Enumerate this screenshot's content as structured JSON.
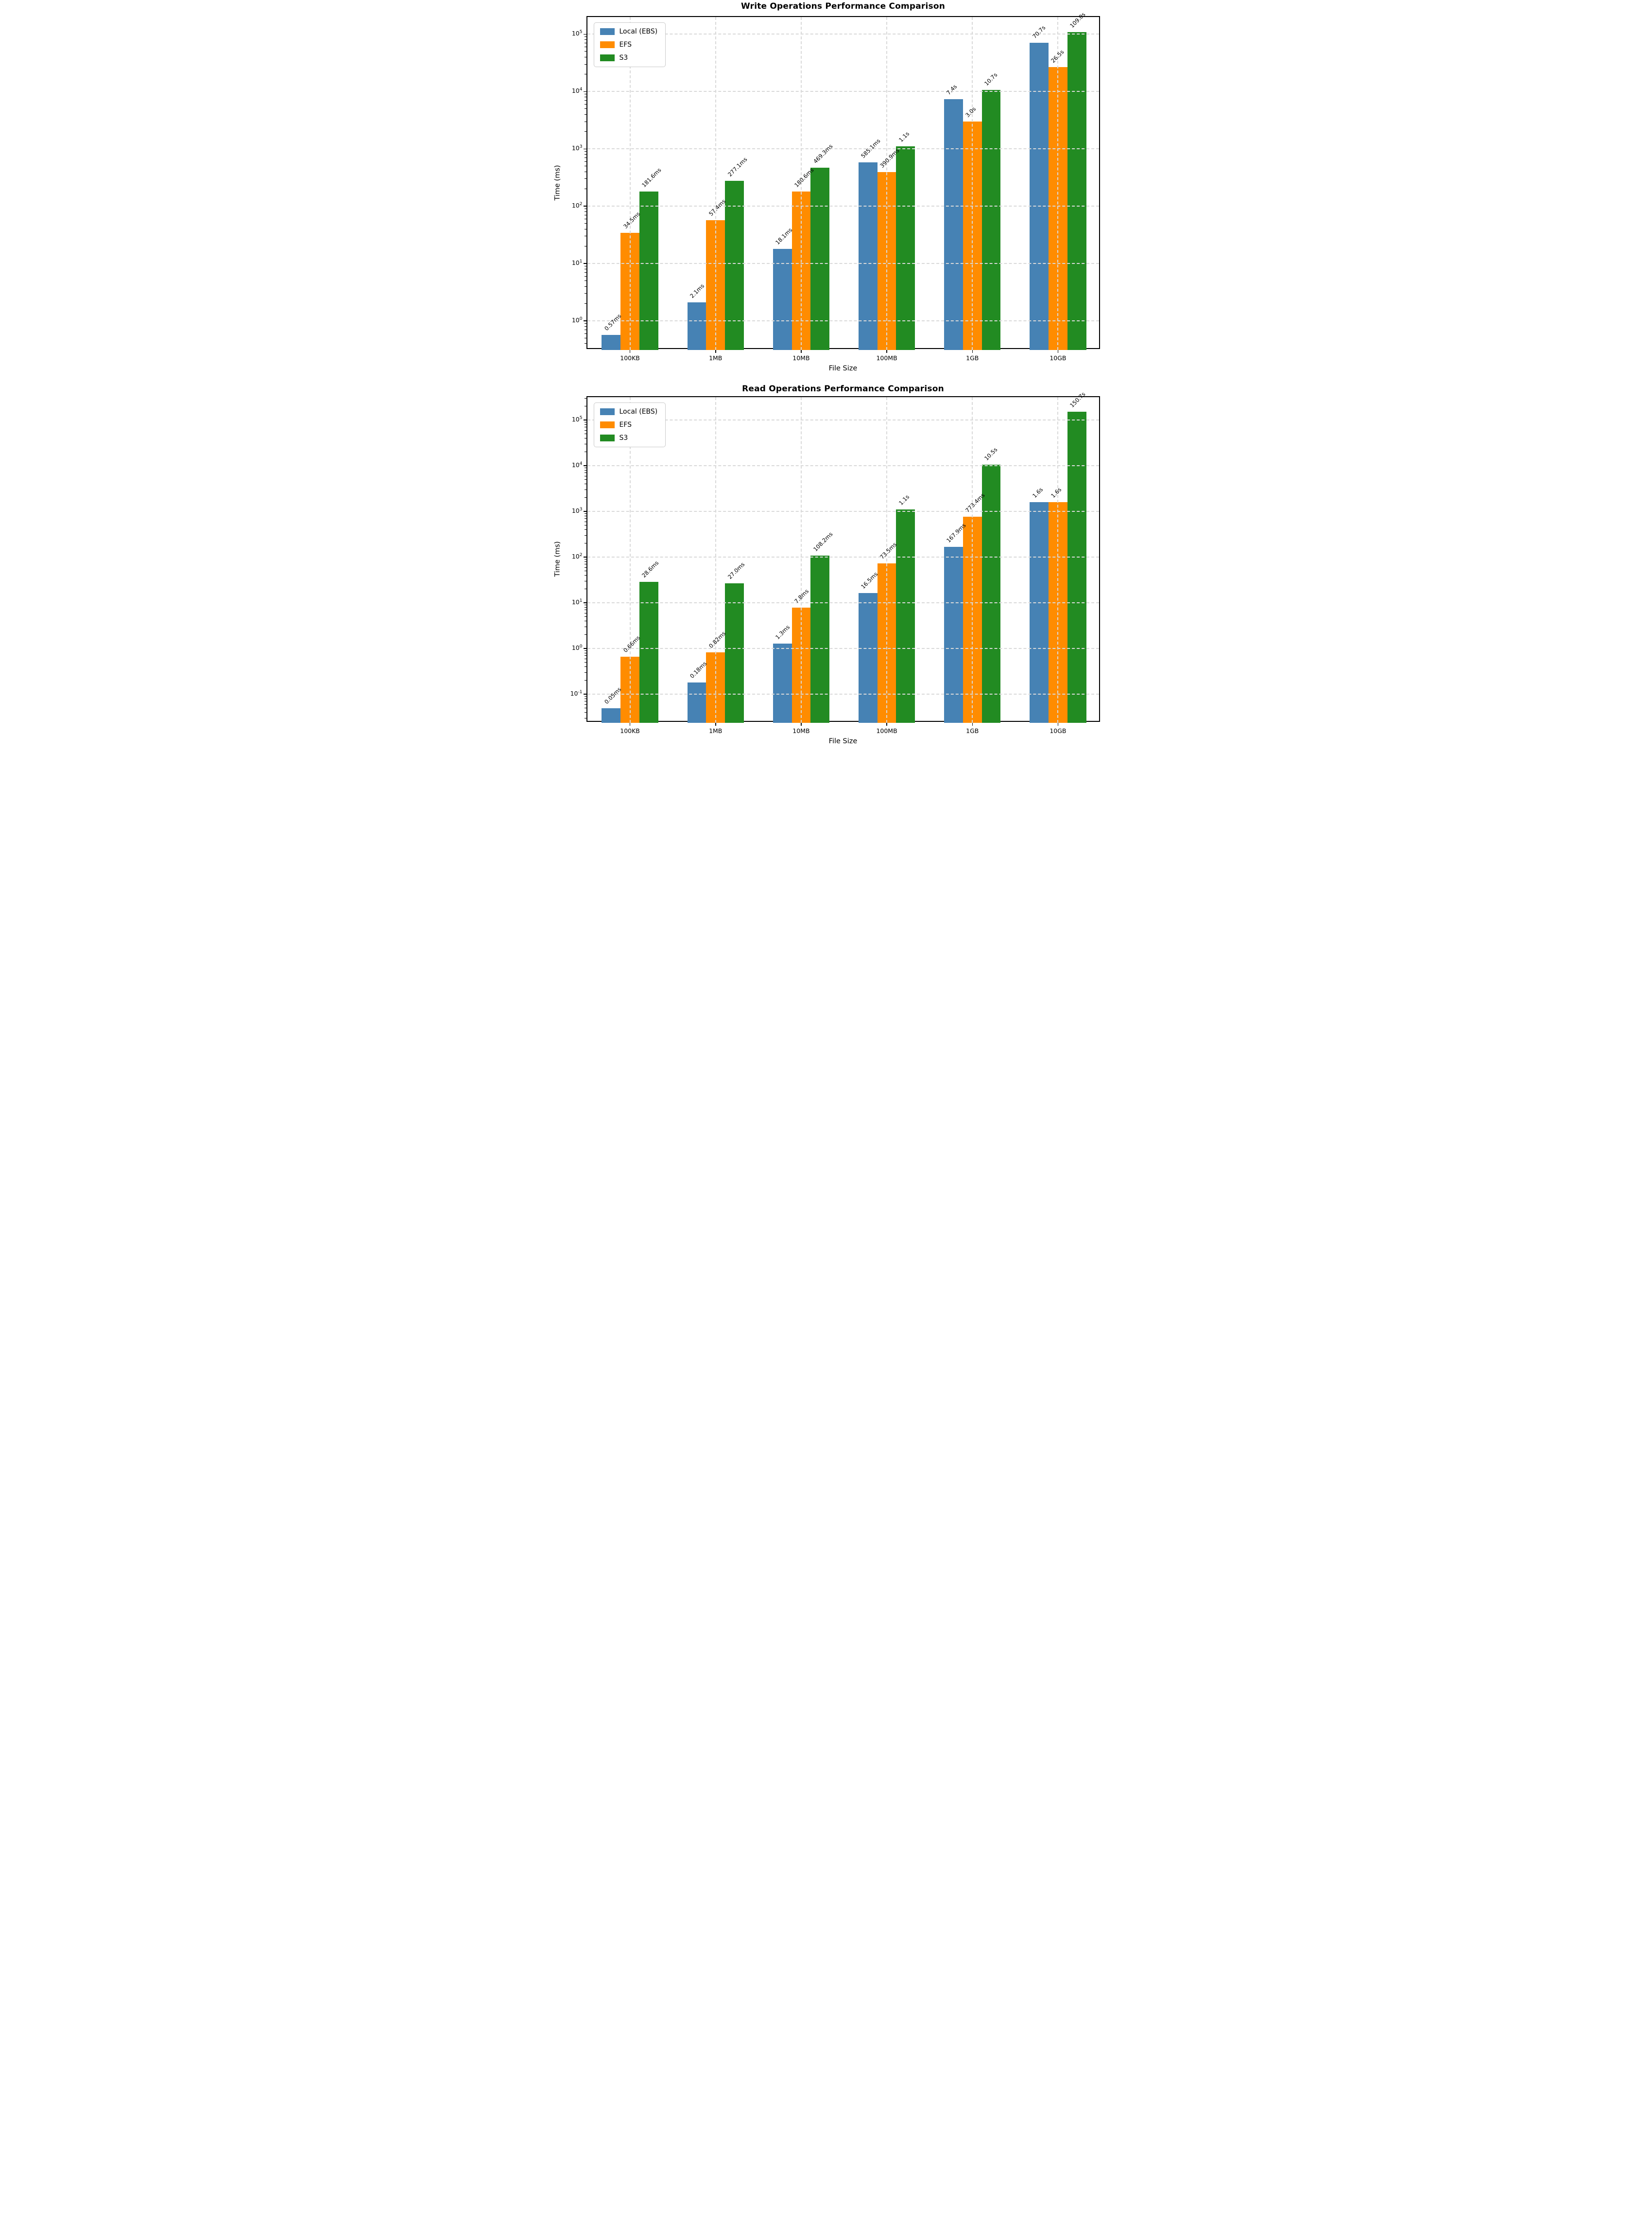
{
  "chart_data": [
    {
      "type": "bar",
      "title": "Write Operations Performance Comparison",
      "xlabel": "File Size",
      "ylabel": "Time (ms)",
      "yscale": "log",
      "grid": true,
      "legend_position": "upper left",
      "categories": [
        "100KB",
        "1MB",
        "10MB",
        "100MB",
        "1GB",
        "10GB"
      ],
      "series": [
        {
          "name": "Local (EBS)",
          "color": "#4682B4",
          "values_ms": [
            0.57,
            2.1,
            18.1,
            585.1,
            7400,
            70700
          ],
          "bar_labels": [
            "0.57ms",
            "2.1ms",
            "18.1ms",
            "585.1ms",
            "7.4s",
            "70.7s"
          ]
        },
        {
          "name": "EFS",
          "color": "#FF8C00",
          "values_ms": [
            34.5,
            57.4,
            180.6,
            390.9,
            3000,
            26500
          ],
          "bar_labels": [
            "34.5ms",
            "57.4ms",
            "180.6ms",
            "390.9ms",
            "3.0s",
            "26.5s"
          ]
        },
        {
          "name": "S3",
          "color": "#228B22",
          "values_ms": [
            181.6,
            277.1,
            469.3,
            1100,
            10700,
            109000
          ],
          "bar_labels": [
            "181.6ms",
            "277.1ms",
            "469.3ms",
            "1.1s",
            "10.7s",
            "109.0s"
          ]
        }
      ],
      "ylim": [
        0.31,
        200000
      ],
      "ytick_exponents": [
        0,
        1,
        2,
        3,
        4,
        5
      ]
    },
    {
      "type": "bar",
      "title": "Read Operations Performance Comparison",
      "xlabel": "File Size",
      "ylabel": "Time (ms)",
      "yscale": "log",
      "grid": true,
      "legend_position": "upper left",
      "categories": [
        "100KB",
        "1MB",
        "10MB",
        "100MB",
        "1GB",
        "10GB"
      ],
      "series": [
        {
          "name": "Local (EBS)",
          "color": "#4682B4",
          "values_ms": [
            0.05,
            0.18,
            1.3,
            16.5,
            167.9,
            1600
          ],
          "bar_labels": [
            "0.05ms",
            "0.18ms",
            "1.3ms",
            "16.5ms",
            "167.9ms",
            "1.6s"
          ]
        },
        {
          "name": "EFS",
          "color": "#FF8C00",
          "values_ms": [
            0.66,
            0.82,
            7.8,
            73.5,
            773.4,
            1600
          ],
          "bar_labels": [
            "0.66ms",
            "0.82ms",
            "7.8ms",
            "73.5ms",
            "773.4ms",
            "1.6s"
          ]
        },
        {
          "name": "S3",
          "color": "#228B22",
          "values_ms": [
            28.6,
            27.0,
            108.2,
            1100,
            10500,
            150700
          ],
          "bar_labels": [
            "28.6ms",
            "27.0ms",
            "108.2ms",
            "1.1s",
            "10.5s",
            "150.7s"
          ]
        }
      ],
      "ylim": [
        0.0237,
        318000
      ],
      "ytick_exponents": [
        -1,
        0,
        1,
        2,
        3,
        4,
        5
      ]
    }
  ]
}
